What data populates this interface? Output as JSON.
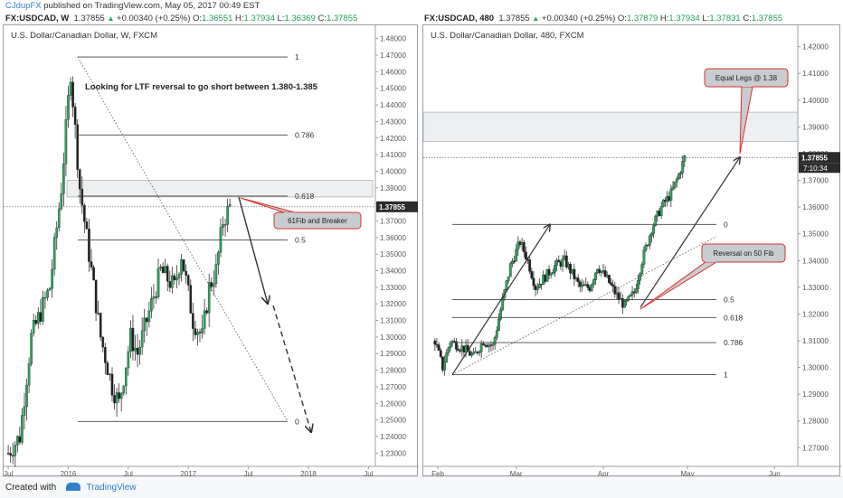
{
  "header": {
    "user": "CJdupFX",
    "published_text": "published on TradingView.com, May 05, 2017 00:49 EST"
  },
  "quotes": [
    {
      "symbol": "FX:USDCAD, W",
      "price": "1.37855",
      "change": "+0.00340 (+0.25%)",
      "o_label": "O:",
      "o": "1.36551",
      "h_label": "H:",
      "h": "1.37934",
      "l_label": "L:",
      "l": "1.36369",
      "c_label": "C:",
      "c": "1.37855"
    },
    {
      "symbol": "FX:USDCAD, 480",
      "price": "1.37855",
      "change": "+0.00340 (+0.25%)",
      "o_label": "O:",
      "o": "1.37879",
      "h_label": "H:",
      "h": "1.37934",
      "l_label": "L:",
      "l": "1.37831",
      "c_label": "C:",
      "c": "1.37855"
    }
  ],
  "colors": {
    "up": "#22a05a",
    "candle_up": "#26a65b",
    "candle_down": "#222222",
    "callout": "#c8cbcf",
    "callout_border": "#d9302b",
    "zone": "#eeeff1"
  },
  "chart_data": [
    {
      "type": "candlestick",
      "title": "U.S. Dollar/Canadian Dollar, W, FXCM",
      "ylim": [
        1.222,
        1.488
      ],
      "yticks": [
        "1.48000",
        "1.47000",
        "1.46000",
        "1.45000",
        "1.44000",
        "1.43000",
        "1.42000",
        "1.41000",
        "1.40000",
        "1.39000",
        "1.38000",
        "1.37000",
        "1.36000",
        "1.35000",
        "1.34000",
        "1.33000",
        "1.32000",
        "1.31000",
        "1.30000",
        "1.29000",
        "1.28000",
        "1.27000",
        "1.26000",
        "1.25000",
        "1.24000",
        "1.23000"
      ],
      "xticks": [
        {
          "label": "Jul",
          "x": 0
        },
        {
          "label": "2016",
          "x": 26
        },
        {
          "label": "Jul",
          "x": 52
        },
        {
          "label": "2017",
          "x": 78
        },
        {
          "label": "Jul",
          "x": 104
        },
        {
          "label": "2018",
          "x": 130
        },
        {
          "label": "Jul",
          "x": 156
        }
      ],
      "xlim": [
        -2,
        159
      ],
      "last_price": "1.37855",
      "anchors": [
        [
          0,
          1.23
        ],
        [
          5,
          1.24
        ],
        [
          10,
          1.3
        ],
        [
          18,
          1.33
        ],
        [
          23,
          1.39
        ],
        [
          27,
          1.46
        ],
        [
          31,
          1.39
        ],
        [
          35,
          1.35
        ],
        [
          40,
          1.3
        ],
        [
          45,
          1.27
        ],
        [
          48,
          1.26
        ],
        [
          53,
          1.3
        ],
        [
          56,
          1.29
        ],
        [
          60,
          1.31
        ],
        [
          66,
          1.34
        ],
        [
          72,
          1.33
        ],
        [
          75,
          1.35
        ],
        [
          80,
          1.31
        ],
        [
          84,
          1.3
        ],
        [
          87,
          1.33
        ],
        [
          90,
          1.34
        ],
        [
          93,
          1.37
        ],
        [
          96,
          1.3786
        ]
      ],
      "levels": [
        {
          "label": "1",
          "price": 1.4689
        },
        {
          "label": "0.786",
          "price": 1.4219
        },
        {
          "label": "0.618",
          "price": 1.385
        },
        {
          "label": "0.5",
          "price": 1.3586
        },
        {
          "label": "0",
          "price": 1.2491
        }
      ],
      "zone": [
        1.3845,
        1.3945
      ],
      "annotation": "Looking for LTF reversal to go short between 1.380-1.385",
      "callout": "61Fib and Breaker"
    },
    {
      "type": "candlestick",
      "title": "U.S. Dollar/Canadian Dollar, 480, FXCM",
      "ylim": [
        1.263,
        1.428
      ],
      "yticks": [
        "1.42000",
        "1.41000",
        "1.40000",
        "1.39000",
        "1.38000",
        "1.37000",
        "1.36000",
        "1.35000",
        "1.34000",
        "1.33000",
        "1.32000",
        "1.31000",
        "1.30000",
        "1.29000",
        "1.28000",
        "1.27000"
      ],
      "xticks": [
        {
          "label": "Feb",
          "x": 3
        },
        {
          "label": "Mar",
          "x": 84
        },
        {
          "label": "Apr",
          "x": 174
        },
        {
          "label": "May",
          "x": 261
        },
        {
          "label": "Jun",
          "x": 351
        }
      ],
      "xlim": [
        -12,
        375
      ],
      "last_price": "1.37855",
      "countdown": "7:10:34",
      "anchors": [
        [
          0,
          1.31
        ],
        [
          8,
          1.3
        ],
        [
          16,
          1.31
        ],
        [
          30,
          1.307
        ],
        [
          40,
          1.304
        ],
        [
          50,
          1.31
        ],
        [
          60,
          1.308
        ],
        [
          70,
          1.325
        ],
        [
          78,
          1.338
        ],
        [
          88,
          1.347
        ],
        [
          96,
          1.34
        ],
        [
          104,
          1.33
        ],
        [
          114,
          1.334
        ],
        [
          124,
          1.338
        ],
        [
          134,
          1.34
        ],
        [
          150,
          1.33
        ],
        [
          160,
          1.33
        ],
        [
          168,
          1.338
        ],
        [
          178,
          1.333
        ],
        [
          186,
          1.328
        ],
        [
          196,
          1.323
        ],
        [
          206,
          1.328
        ],
        [
          214,
          1.34
        ],
        [
          224,
          1.352
        ],
        [
          234,
          1.36
        ],
        [
          244,
          1.365
        ],
        [
          252,
          1.372
        ],
        [
          258,
          1.3785
        ]
      ],
      "levels": [
        {
          "label": "0",
          "price": 1.3535
        },
        {
          "label": "0.5",
          "price": 1.3254
        },
        {
          "label": "0.618",
          "price": 1.3187
        },
        {
          "label": "0.786",
          "price": 1.3093
        },
        {
          "label": "1",
          "price": 1.2973
        }
      ],
      "zone": [
        1.3845,
        1.3955
      ],
      "callout_top": "Equal Legs @ 1.38",
      "callout_mid": "Reversal on 50 Fib"
    }
  ],
  "footer": {
    "created": "Created with",
    "brand": "TradingView"
  }
}
